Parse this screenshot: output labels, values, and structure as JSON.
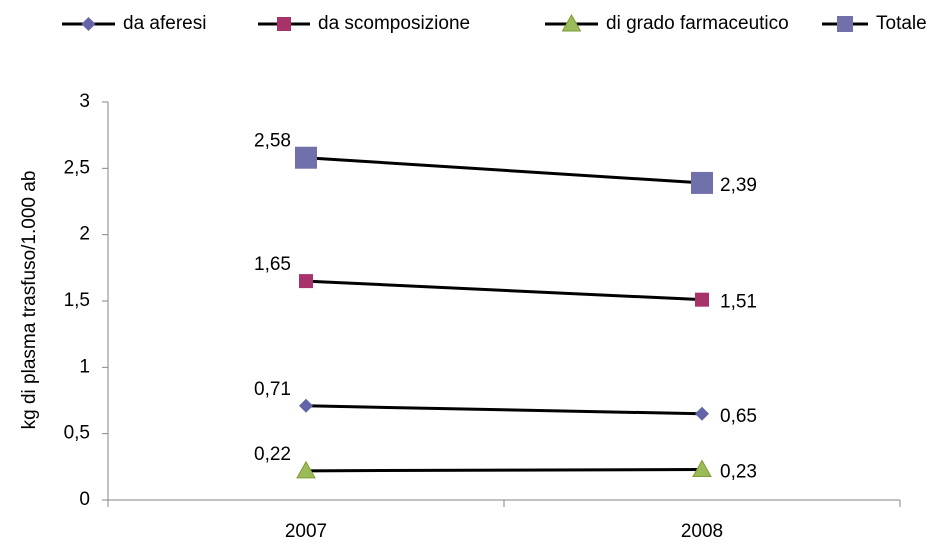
{
  "chart_data": {
    "type": "line",
    "y_label": "kg  di plasma trasfuso/1.000 ab",
    "categories": [
      "2007",
      "2008"
    ],
    "line_color": "#000000",
    "series": [
      {
        "name": "da aferesi",
        "color": "#6464A8",
        "marker": "diamond",
        "values": [
          0.71,
          0.65
        ],
        "value_labels": [
          "0,71",
          "0,65"
        ]
      },
      {
        "name": "da scomposizione",
        "color": "#A8336A",
        "marker": "square",
        "values": [
          1.65,
          1.51
        ],
        "value_labels": [
          "1,65",
          "1,51"
        ]
      },
      {
        "name": "di grado farmaceutico",
        "color": "#9BBB59",
        "marker": "triangle",
        "values": [
          0.22,
          0.23
        ],
        "value_labels": [
          "0,22",
          "0,23"
        ]
      },
      {
        "name": "Totale",
        "color": "#7070AA",
        "marker": "bigsquare",
        "values": [
          2.58,
          2.39
        ],
        "value_labels": [
          "2,58",
          "2,39"
        ]
      }
    ],
    "ylim": [
      0,
      3
    ],
    "yticks": [
      0,
      {
        "value": 0.5,
        "label": "0,5"
      },
      1,
      {
        "value": 1.5,
        "label": "1,5"
      },
      2,
      {
        "value": 2.5,
        "label": "2,5"
      },
      3
    ],
    "legend": "top"
  }
}
